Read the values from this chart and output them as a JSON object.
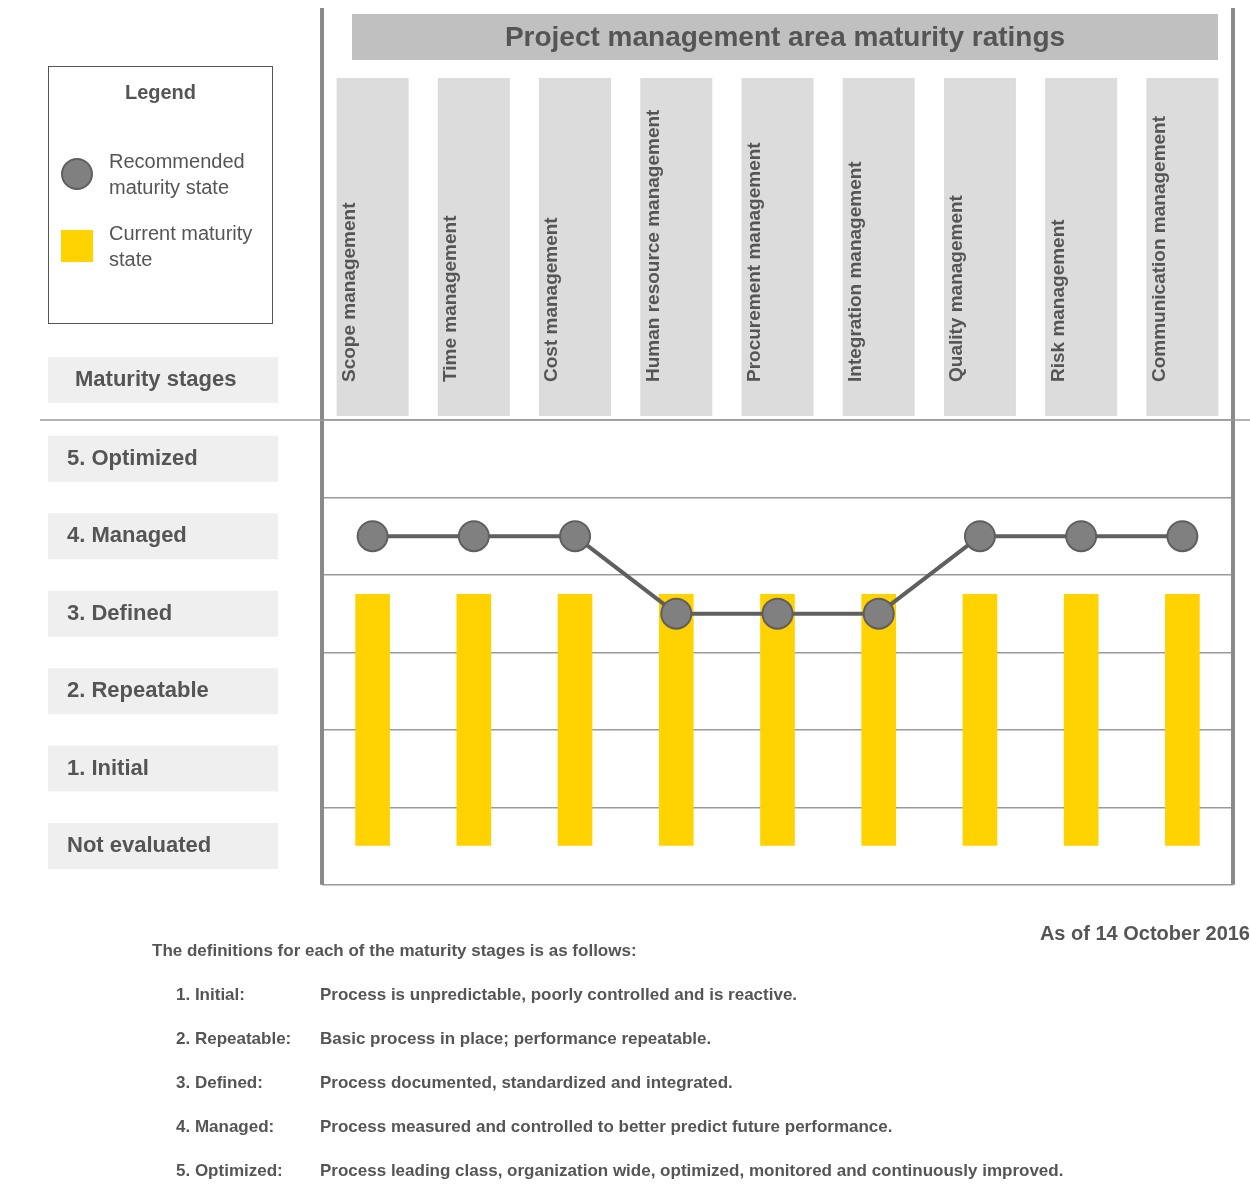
{
  "chart_data": {
    "type": "bar",
    "title": "Project management area maturity ratings",
    "legend_title": "Legend",
    "categories": [
      "Scope management",
      "Time management",
      "Cost management",
      "Human resource management",
      "Procurement management",
      "Integration management",
      "Quality management",
      "Risk management",
      "Communication management"
    ],
    "series": [
      {
        "name": "Recommended maturity state",
        "type": "line",
        "color": "#808080",
        "values": [
          4,
          4,
          4,
          3,
          3,
          3,
          4,
          4,
          4
        ]
      },
      {
        "name": "Current maturity state",
        "color": "#ffd200",
        "values": [
          3.25,
          3.25,
          3.25,
          3.25,
          3.25,
          3.25,
          3.25,
          3.25,
          3.25
        ]
      }
    ],
    "ylabel": "Maturity stages",
    "ylim": [
      -0.5,
      5.5
    ],
    "yticks": [
      {
        "value": -0.5,
        "label": null
      },
      {
        "value": 0,
        "label": "Not evaluated"
      },
      {
        "value": 0.5,
        "label": null
      },
      {
        "value": 1,
        "label": "1. Initial"
      },
      {
        "value": 1.5,
        "label": null
      },
      {
        "value": 2,
        "label": "2. Repeatable"
      },
      {
        "value": 2.5,
        "label": null
      },
      {
        "value": 3,
        "label": "3. Defined"
      },
      {
        "value": 3.5,
        "label": null
      },
      {
        "value": 4,
        "label": "4. Managed"
      },
      {
        "value": 4.5,
        "label": null
      },
      {
        "value": 5,
        "label": "5. Optimized"
      },
      {
        "value": 5.5,
        "label": null
      }
    ],
    "grid": "y",
    "legend": "top left",
    "marker": "circle",
    "annotations": [
      "As of 14 October 2016",
      "The definitions for each of the maturity stages is as follows:",
      "1. Initial:",
      "Process is unpredictable, poorly controlled and is reactive.",
      "2. Repeatable:",
      "Basic process in place; performance repeatable.",
      "3. Defined:",
      "Process documented, standardized and integrated.",
      "4. Managed:",
      "Process measured and controlled to better predict future performance.",
      "5. Optimized:",
      "Process leading class, organization wide, optimized, monitored and continuously improved."
    ]
  }
}
